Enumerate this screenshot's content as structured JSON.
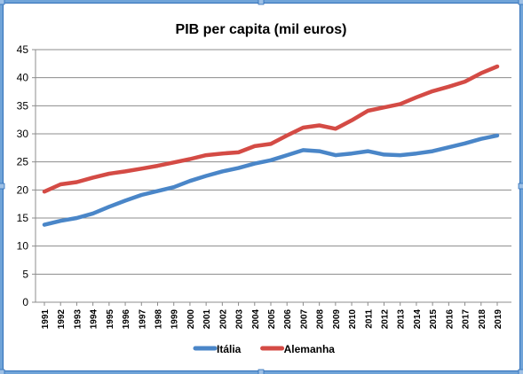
{
  "chart_data": {
    "type": "line",
    "title": "PIB per capita (mil euros)",
    "xlabel": "",
    "ylabel": "",
    "ylim": [
      0,
      45
    ],
    "yticks": [
      0,
      5,
      10,
      15,
      20,
      25,
      30,
      35,
      40,
      45
    ],
    "grid": true,
    "legend_position": "bottom",
    "categories": [
      "1991",
      "1992",
      "1993",
      "1994",
      "1995",
      "1996",
      "1997",
      "1998",
      "1999",
      "2000",
      "2001",
      "2002",
      "2003",
      "2004",
      "2005",
      "2006",
      "2007",
      "2008",
      "2009",
      "2010",
      "2011",
      "2012",
      "2013",
      "2014",
      "2015",
      "2016",
      "2017",
      "2018",
      "2019"
    ],
    "series": [
      {
        "name": "Itália",
        "color": "#4A86C8",
        "values": [
          13.8,
          14.5,
          15.0,
          15.8,
          17.0,
          18.1,
          19.1,
          19.8,
          20.5,
          21.6,
          22.5,
          23.3,
          23.9,
          24.7,
          25.3,
          26.2,
          27.1,
          26.9,
          26.2,
          26.5,
          26.9,
          26.3,
          26.2,
          26.5,
          26.9,
          27.6,
          28.3,
          29.1,
          29.7
        ]
      },
      {
        "name": "Alemanha",
        "color": "#D44B45",
        "values": [
          19.7,
          21.0,
          21.4,
          22.2,
          22.9,
          23.3,
          23.8,
          24.3,
          24.9,
          25.5,
          26.2,
          26.5,
          26.7,
          27.8,
          28.2,
          29.7,
          31.1,
          31.5,
          30.9,
          32.4,
          34.1,
          34.7,
          35.3,
          36.5,
          37.6,
          38.4,
          39.3,
          40.8,
          42.0
        ]
      }
    ]
  }
}
